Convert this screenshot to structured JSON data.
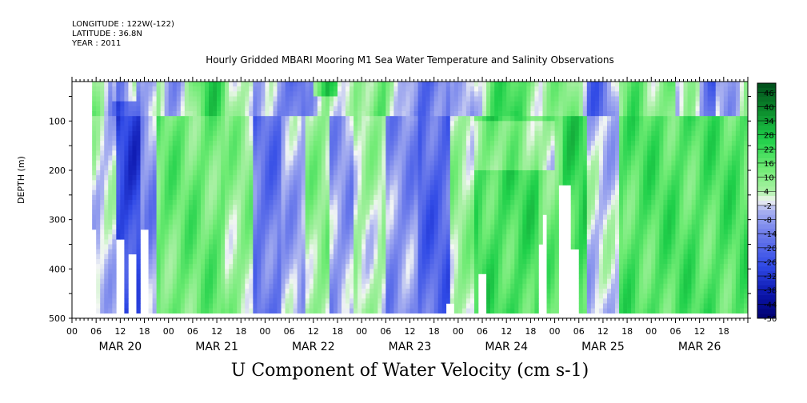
{
  "header": {
    "longitude": "LONGITUDE : 122W(-122)",
    "latitude": "LATITUDE : 36.8N",
    "year": "YEAR : 2011",
    "title": "Hourly Gridded MBARI Mooring M1 Sea Water Temperature and Salinity Observations"
  },
  "chart_data": {
    "type": "heatmap",
    "title": "Hourly Gridded MBARI Mooring M1 Sea Water Temperature and Salinity Observations",
    "xlabel": "",
    "ylabel": "DEPTH (m)",
    "bottom_title": "U Component of Water Velocity (cm s-1)",
    "hour_ticks": [
      "00",
      "06",
      "12",
      "18",
      "00",
      "06",
      "12",
      "18",
      "00",
      "06",
      "12",
      "18",
      "00",
      "06",
      "12",
      "18",
      "00",
      "06",
      "12",
      "18",
      "00",
      "06",
      "12",
      "18",
      "00",
      "06",
      "12",
      "18"
    ],
    "day_labels": [
      "MAR 20",
      "MAR 21",
      "MAR 22",
      "MAR 23",
      "MAR 24",
      "MAR 25",
      "MAR 26"
    ],
    "xlim_hours": [
      0,
      168
    ],
    "ylim": [
      500,
      20
    ],
    "y_ticks": [
      100,
      200,
      300,
      400,
      500
    ],
    "colorbar_ticks": [
      46,
      40,
      34,
      28,
      22,
      16,
      10,
      4,
      -2,
      -8,
      -14,
      -20,
      -26,
      -32,
      -38,
      -44,
      -50
    ],
    "colorbar_range": [
      -50,
      50
    ],
    "data_start_hour": 5,
    "data_depth_range": [
      25,
      485
    ],
    "grid": false
  },
  "colors": {
    "strong_negative": "#000070",
    "negative": "#2f49e6",
    "weak_negative": "#9aa6f0",
    "zero": "#f4f7f4",
    "weak_positive": "#8ef08a",
    "positive": "#1fd04a",
    "strong_positive": "#004d1a"
  }
}
